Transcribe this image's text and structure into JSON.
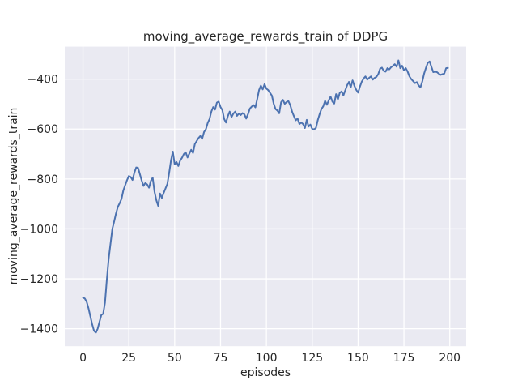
{
  "figure": {
    "title": "moving_average_rewards_train of DDPG",
    "xlabel": "episodes",
    "ylabel": "moving_average_rewards_train"
  },
  "chart_data": {
    "type": "line",
    "title": "moving_average_rewards_train of DDPG",
    "xlabel": "episodes",
    "ylabel": "moving_average_rewards_train",
    "x_ticks": [
      0,
      25,
      50,
      75,
      100,
      125,
      150,
      175,
      200
    ],
    "y_ticks": [
      -400,
      -600,
      -800,
      -1000,
      -1200,
      -1400
    ],
    "xlim": [
      -9.95,
      208.95
    ],
    "ylim": [
      -1470,
      -270
    ],
    "grid": true,
    "legend_position": "none",
    "style": {
      "plot_bg": "#eaeaf2",
      "grid_color": "#ffffff",
      "figure_bg": "#ffffff",
      "text_color": "#262626",
      "line_color": "#4c72b0"
    },
    "series": [
      {
        "name": "moving_average_rewards_train",
        "color": "#4c72b0",
        "x_start": 0,
        "x_step": 1,
        "values": [
          -1275,
          -1279,
          -1292,
          -1318,
          -1350,
          -1382,
          -1408,
          -1416,
          -1400,
          -1372,
          -1345,
          -1340,
          -1295,
          -1203,
          -1120,
          -1060,
          -1000,
          -970,
          -938,
          -912,
          -897,
          -880,
          -846,
          -825,
          -805,
          -788,
          -792,
          -804,
          -775,
          -754,
          -755,
          -780,
          -806,
          -828,
          -816,
          -822,
          -835,
          -808,
          -795,
          -851,
          -885,
          -908,
          -858,
          -876,
          -856,
          -838,
          -820,
          -775,
          -725,
          -690,
          -742,
          -732,
          -748,
          -726,
          -715,
          -700,
          -693,
          -714,
          -698,
          -683,
          -696,
          -660,
          -648,
          -636,
          -628,
          -639,
          -612,
          -601,
          -576,
          -560,
          -530,
          -512,
          -522,
          -494,
          -490,
          -512,
          -524,
          -560,
          -574,
          -548,
          -530,
          -552,
          -538,
          -530,
          -547,
          -538,
          -544,
          -536,
          -541,
          -558,
          -540,
          -518,
          -510,
          -504,
          -513,
          -480,
          -444,
          -426,
          -441,
          -420,
          -438,
          -444,
          -455,
          -466,
          -499,
          -520,
          -526,
          -537,
          -493,
          -483,
          -499,
          -492,
          -488,
          -504,
          -530,
          -548,
          -565,
          -558,
          -580,
          -574,
          -580,
          -596,
          -563,
          -590,
          -582,
          -600,
          -601,
          -596,
          -565,
          -541,
          -520,
          -509,
          -487,
          -503,
          -485,
          -470,
          -490,
          -498,
          -460,
          -481,
          -455,
          -449,
          -465,
          -445,
          -425,
          -411,
          -433,
          -405,
          -427,
          -443,
          -454,
          -430,
          -410,
          -398,
          -389,
          -402,
          -395,
          -389,
          -402,
          -395,
          -391,
          -380,
          -358,
          -354,
          -367,
          -370,
          -356,
          -361,
          -352,
          -347,
          -340,
          -350,
          -325,
          -356,
          -346,
          -365,
          -356,
          -370,
          -389,
          -400,
          -408,
          -416,
          -412,
          -425,
          -433,
          -410,
          -378,
          -355,
          -335,
          -329,
          -351,
          -372,
          -370,
          -372,
          -378,
          -383,
          -380,
          -378,
          -356,
          -355
        ]
      }
    ]
  }
}
